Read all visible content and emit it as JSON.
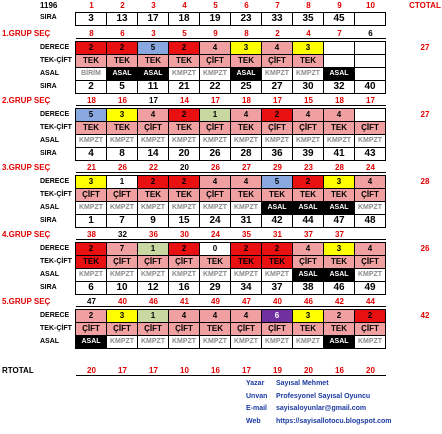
{
  "corner_value": "1196",
  "ctotal_label": "CTOTAL",
  "rtotal_label": "RTOTAL",
  "columns": [
    "1",
    "2",
    "3",
    "4",
    "5",
    "6",
    "7",
    "8",
    "9",
    "10"
  ],
  "header_sira": {
    "label": "SIRA",
    "values": [
      "3",
      "13",
      "17",
      "18",
      "19",
      "23",
      "33",
      "35",
      "45",
      ""
    ]
  },
  "colors": {
    "red": "#e81010",
    "yellow": "#ffff00",
    "blue": "#8aa8e0",
    "pink": "#f0a0a0",
    "green": "#c8d8a0",
    "black": "#000000",
    "purple": "#7030a0",
    "white": "#ffffff",
    "accent": "#e00000",
    "info": "#1a3aa0"
  },
  "groups": [
    {
      "title": "1.GRUP SEÇ",
      "sec": [
        "8",
        "6",
        "3",
        "5",
        "9",
        "8",
        "2",
        "4",
        "7",
        "6"
      ],
      "sec_black_index": 9,
      "derece": {
        "label": "DERECE",
        "values": [
          "2",
          "2",
          "5",
          "2",
          "4",
          "3",
          "4",
          "3",
          "",
          ""
        ],
        "colors": [
          "red",
          "red",
          "blue",
          "red",
          "pink",
          "yellow",
          "pink",
          "yellow",
          "white",
          "white"
        ]
      },
      "tekcift": {
        "label": "TEK-ÇİFT",
        "values": [
          "TEK",
          "TEK",
          "TEK",
          "TEK",
          "ÇİFT",
          "TEK",
          "ÇİFT",
          "TEK",
          "",
          ""
        ],
        "colors": [
          "pink",
          "pink",
          "pink",
          "pink",
          "pink",
          "pink",
          "pink",
          "pink",
          "white",
          "white"
        ]
      },
      "asal": {
        "label": "ASAL",
        "values": [
          "BİRİM",
          "ASAL",
          "ASAL",
          "KMPZT",
          "KMPZT",
          "ASAL",
          "KMPZT",
          "KMPZT",
          "ASAL",
          ""
        ],
        "colors": [
          "white",
          "black",
          "black",
          "white",
          "white",
          "black",
          "white",
          "white",
          "black",
          "white"
        ]
      },
      "sira": {
        "label": "SIRA",
        "values": [
          "2",
          "5",
          "11",
          "21",
          "22",
          "25",
          "27",
          "30",
          "32",
          "40"
        ]
      },
      "ctotal": "27"
    },
    {
      "title": "2.GRUP SEÇ",
      "sec": [
        "18",
        "16",
        "17",
        "14",
        "17",
        "18",
        "17",
        "15",
        "18",
        "17"
      ],
      "sec_black_index": 2,
      "derece": {
        "label": "DERECE",
        "values": [
          "5",
          "3",
          "4",
          "2",
          "1",
          "4",
          "2",
          "4",
          "4",
          ""
        ],
        "colors": [
          "blue",
          "yellow",
          "pink",
          "red",
          "green",
          "pink",
          "red",
          "pink",
          "pink",
          "white"
        ]
      },
      "tekcift": {
        "label": "TEK-ÇİFT",
        "values": [
          "TEK",
          "TEK",
          "ÇİFT",
          "TEK",
          "ÇİFT",
          "TEK",
          "ÇİFT",
          "ÇİFT",
          "TEK",
          "ÇİFT"
        ],
        "colors": [
          "pink",
          "pink",
          "pink",
          "pink",
          "pink",
          "pink",
          "pink",
          "pink",
          "pink",
          "pink"
        ]
      },
      "asal": {
        "label": "ASAL",
        "values": [
          "KMPZT",
          "KMPZT",
          "KMPZT",
          "KMPZT",
          "KMPZT",
          "KMPZT",
          "KMPZT",
          "KMPZT",
          "KMPZT",
          "KMPZT"
        ],
        "colors": [
          "white",
          "white",
          "white",
          "white",
          "white",
          "white",
          "white",
          "white",
          "white",
          "white"
        ]
      },
      "sira": {
        "label": "SIRA",
        "values": [
          "4",
          "8",
          "14",
          "20",
          "26",
          "28",
          "36",
          "39",
          "41",
          "43"
        ]
      },
      "ctotal": "27"
    },
    {
      "title": "3.GRUP SEÇ",
      "sec": [
        "21",
        "26",
        "22",
        "20",
        "26",
        "27",
        "29",
        "23",
        "28",
        "24"
      ],
      "sec_black_index": 3,
      "derece": {
        "label": "DERECE",
        "values": [
          "3",
          "1",
          "2",
          "2",
          "4",
          "4",
          "5",
          "2",
          "3",
          "4"
        ],
        "colors": [
          "yellow",
          "white",
          "red",
          "red",
          "pink",
          "pink",
          "blue",
          "red",
          "yellow",
          "pink"
        ]
      },
      "tekcift": {
        "label": "TEK-ÇİFT",
        "values": [
          "ÇİFT",
          "ÇİFT",
          "TEK",
          "TEK",
          "ÇİFT",
          "TEK",
          "TEK",
          "TEK",
          "TEK",
          "ÇİFT"
        ],
        "colors": [
          "pink",
          "pink",
          "pink",
          "pink",
          "pink",
          "pink",
          "pink",
          "pink",
          "pink",
          "pink"
        ]
      },
      "asal": {
        "label": "ASAL",
        "values": [
          "KMPZT",
          "KMPZT",
          "KMPZT",
          "KMPZT",
          "KMPZT",
          "KMPZT",
          "ASAL",
          "ASAL",
          "ASAL",
          "KMPZT"
        ],
        "colors": [
          "white",
          "white",
          "white",
          "white",
          "white",
          "white",
          "black",
          "black",
          "black",
          "white"
        ]
      },
      "sira": {
        "label": "SIRA",
        "values": [
          "1",
          "7",
          "9",
          "15",
          "24",
          "31",
          "42",
          "44",
          "47",
          "48"
        ]
      },
      "ctotal": "28"
    },
    {
      "title": "4.GRUP SEÇ",
      "sec": [
        "38",
        "32",
        "36",
        "30",
        "24",
        "35",
        "31",
        "37",
        "37",
        ""
      ],
      "sec_black_index": 1,
      "derece": {
        "label": "DERECE",
        "values": [
          "2",
          "7",
          "1",
          "2",
          "0",
          "2",
          "2",
          "4",
          "3",
          "4"
        ],
        "colors": [
          "red",
          "pink",
          "green",
          "red",
          "white",
          "red",
          "red",
          "pink",
          "yellow",
          "pink"
        ]
      },
      "tekcift": {
        "label": "TEK-ÇİFT",
        "values": [
          "TEK",
          "ÇİFT",
          "ÇİFT",
          "ÇİFT",
          "TEK",
          "TEK",
          "TEK",
          "ÇİFT",
          "TEK",
          "ÇİFT"
        ],
        "colors": [
          "red",
          "pink",
          "pink",
          "pink",
          "pink",
          "red",
          "red",
          "pink",
          "pink",
          "pink"
        ]
      },
      "asal": {
        "label": "ASAL",
        "values": [
          "KMPZT",
          "KMPZT",
          "KMPZT",
          "KMPZT",
          "KMPZT",
          "KMPZT",
          "KMPZT",
          "ASAL",
          "ASAL",
          "KMPZT"
        ],
        "colors": [
          "white",
          "white",
          "white",
          "white",
          "white",
          "white",
          "white",
          "black",
          "black",
          "white"
        ]
      },
      "sira": {
        "label": "SIRA",
        "values": [
          "6",
          "10",
          "12",
          "16",
          "29",
          "34",
          "37",
          "38",
          "46",
          "49"
        ]
      },
      "ctotal": "26"
    },
    {
      "title": "5.GRUP SEÇ",
      "sec": [
        "47",
        "40",
        "46",
        "41",
        "49",
        "47",
        "40",
        "46",
        "42",
        "44"
      ],
      "sec_black_index": 0,
      "derece": {
        "label": "DERECE",
        "values": [
          "2",
          "3",
          "1",
          "4",
          "4",
          "4",
          "6",
          "3",
          "2",
          "2"
        ],
        "colors": [
          "pink",
          "yellow",
          "green",
          "pink",
          "pink",
          "pink",
          "purple",
          "yellow",
          "pink",
          "red"
        ]
      },
      "tekcift": {
        "label": "TEK-ÇİFT",
        "values": [
          "ÇİFT",
          "ÇİFT",
          "ÇİFT",
          "ÇİFT",
          "TEK",
          "ÇİFT",
          "ÇİFT",
          "TEK",
          "TEK",
          "ÇİFT"
        ],
        "colors": [
          "pink",
          "pink",
          "pink",
          "pink",
          "pink",
          "pink",
          "pink",
          "pink",
          "pink",
          "pink"
        ]
      },
      "asal": {
        "label": "ASAL",
        "values": [
          "ASAL",
          "KMPZT",
          "KMPZT",
          "KMPZT",
          "KMPZT",
          "KMPZT",
          "KMPZT",
          "KMPZT",
          "ASAL",
          "KMPZT"
        ],
        "colors": [
          "black",
          "white",
          "white",
          "white",
          "white",
          "white",
          "white",
          "white",
          "black",
          "white"
        ]
      },
      "sira": null,
      "ctotal": "42"
    }
  ],
  "rtotal": [
    "20",
    "17",
    "17",
    "10",
    "16",
    "17",
    "19",
    "20",
    "16",
    "20"
  ],
  "info": {
    "yazar_label": "Yazar",
    "yazar_value": "Sayısal Mehmet",
    "unvan_label": "Unvan",
    "unvan_value": "Profesyonel Sayısal Oyuncu",
    "email_label": "E-mail",
    "email_value": "sayisaloyunlar@gmail.com",
    "web_label": "Web",
    "web_value": "https://sayisallotocu.blogspot.com"
  }
}
